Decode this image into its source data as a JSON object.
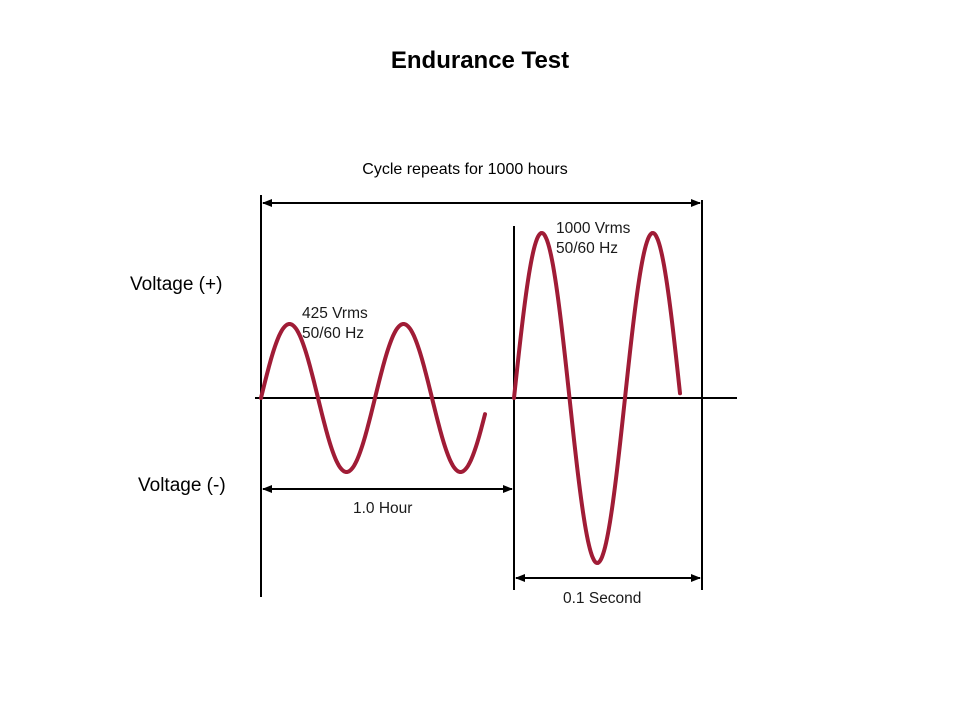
{
  "title": "Endurance Test",
  "top_span_label": "Cycle repeats for 1000 hours",
  "voltage_positive_label": "Voltage (+)",
  "voltage_negative_label": "Voltage (-)",
  "low_phase": {
    "amplitude_label": "425 Vrms",
    "frequency_label": "50/60 Hz",
    "duration_label": "1.0 Hour"
  },
  "high_phase": {
    "amplitude_label": "1000 Vrms",
    "frequency_label": "50/60 Hz",
    "duration_label": "0.1 Second"
  },
  "colors": {
    "waveform": "#a01c36",
    "lines": "#000000"
  }
}
